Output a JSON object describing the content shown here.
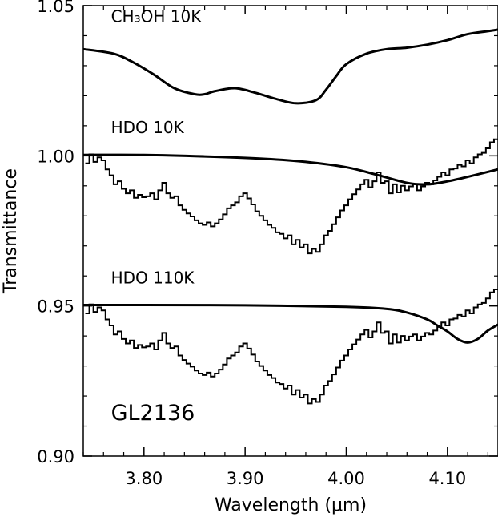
{
  "chart_data": {
    "type": "line",
    "xlabel": "Wavelength (μm)",
    "ylabel": "Transmittance",
    "xlim": [
      3.74,
      4.15
    ],
    "ylim": [
      0.9,
      1.05
    ],
    "x_ticks": [
      3.8,
      3.9,
      4.0,
      4.1
    ],
    "x_tick_labels": [
      "3.80",
      "3.90",
      "4.00",
      "4.10"
    ],
    "y_ticks": [
      0.9,
      0.95,
      1.0,
      1.05
    ],
    "y_tick_labels": [
      "0.90",
      "0.95",
      "1.00",
      "1.05"
    ],
    "grid": false,
    "annotations": [
      {
        "text": "CH₃OH 10K",
        "x": 3.765,
        "y": 1.0445
      },
      {
        "text": "HDO 10K",
        "x": 3.765,
        "y": 1.0075
      },
      {
        "text": "HDO 110K",
        "x": 3.765,
        "y": 0.9575
      },
      {
        "text": "GL2136",
        "x": 3.765,
        "y": 0.912
      }
    ],
    "series": [
      {
        "style": "smooth",
        "x": [
          3.74,
          3.77,
          3.79,
          3.81,
          3.83,
          3.85,
          3.86,
          3.87,
          3.89,
          3.91,
          3.93,
          3.95,
          3.97,
          3.98,
          3.99,
          4.0,
          4.02,
          4.04,
          4.06,
          4.08,
          4.1,
          4.12,
          4.14,
          4.15
        ],
        "y": [
          1.0355,
          1.034,
          1.031,
          1.027,
          1.0225,
          1.0205,
          1.0205,
          1.0215,
          1.0225,
          1.021,
          1.019,
          1.0175,
          1.0185,
          1.022,
          1.0265,
          1.0305,
          1.034,
          1.0355,
          1.036,
          1.037,
          1.0385,
          1.0405,
          1.0415,
          1.042
        ]
      },
      {
        "style": "smooth",
        "x": [
          3.74,
          3.8,
          3.86,
          3.92,
          3.96,
          4.0,
          4.03,
          4.06,
          4.08,
          4.1,
          4.12,
          4.15
        ],
        "y": [
          1.0003,
          1.0003,
          0.9998,
          0.999,
          0.998,
          0.9962,
          0.9937,
          0.991,
          0.9905,
          0.9915,
          0.993,
          0.9955
        ]
      },
      {
        "style": "smooth",
        "x": [
          3.74,
          3.8,
          3.9,
          4.0,
          4.04,
          4.06,
          4.08,
          4.09,
          4.1,
          4.11,
          4.12,
          4.13,
          4.14,
          4.15
        ],
        "y": [
          0.9503,
          0.9503,
          0.9502,
          0.9497,
          0.949,
          0.9478,
          0.9455,
          0.9435,
          0.9415,
          0.939,
          0.9378,
          0.939,
          0.9418,
          0.9438
        ]
      },
      {
        "style": "step",
        "x": [
          3.744,
          3.748,
          3.752,
          3.756,
          3.76,
          3.764,
          3.768,
          3.772,
          3.776,
          3.78,
          3.784,
          3.788,
          3.792,
          3.796,
          3.8,
          3.804,
          3.808,
          3.812,
          3.816,
          3.82,
          3.824,
          3.828,
          3.832,
          3.836,
          3.84,
          3.844,
          3.848,
          3.852,
          3.856,
          3.86,
          3.864,
          3.868,
          3.872,
          3.876,
          3.88,
          3.884,
          3.888,
          3.892,
          3.896,
          3.9,
          3.904,
          3.908,
          3.912,
          3.916,
          3.92,
          3.924,
          3.928,
          3.932,
          3.936,
          3.94,
          3.944,
          3.948,
          3.952,
          3.956,
          3.96,
          3.964,
          3.968,
          3.972,
          3.976,
          3.98,
          3.984,
          3.988,
          3.992,
          3.996,
          4.0,
          4.004,
          4.008,
          4.012,
          4.016,
          4.02,
          4.024,
          4.028,
          4.032,
          4.036,
          4.04,
          4.044,
          4.048,
          4.052,
          4.056,
          4.06,
          4.064,
          4.068,
          4.072,
          4.076,
          4.08,
          4.084,
          4.088,
          4.092,
          4.096,
          4.1,
          4.104,
          4.108,
          4.112,
          4.116,
          4.12,
          4.124,
          4.128,
          4.132,
          4.136,
          4.14,
          4.144,
          4.148
        ],
        "y": [
          0.9975,
          1.0005,
          0.998,
          0.9995,
          0.9985,
          0.9955,
          0.9935,
          0.9905,
          0.9915,
          0.989,
          0.9875,
          0.9885,
          0.986,
          0.987,
          0.9862,
          0.9865,
          0.9875,
          0.9855,
          0.9885,
          0.991,
          0.9875,
          0.986,
          0.9865,
          0.9835,
          0.982,
          0.9808,
          0.9798,
          0.9785,
          0.9775,
          0.977,
          0.9778,
          0.9765,
          0.9775,
          0.9788,
          0.9805,
          0.9825,
          0.9835,
          0.9845,
          0.9865,
          0.9875,
          0.9858,
          0.9838,
          0.9815,
          0.98,
          0.9785,
          0.977,
          0.976,
          0.9745,
          0.974,
          0.9725,
          0.9735,
          0.9705,
          0.972,
          0.9695,
          0.9705,
          0.9675,
          0.969,
          0.968,
          0.9705,
          0.9735,
          0.975,
          0.9772,
          0.9795,
          0.9818,
          0.9835,
          0.9855,
          0.9872,
          0.9888,
          0.9905,
          0.992,
          0.9895,
          0.9915,
          0.9945,
          0.991,
          0.9915,
          0.9875,
          0.9905,
          0.9878,
          0.99,
          0.9885,
          0.9898,
          0.9905,
          0.9885,
          0.9898,
          0.991,
          0.9905,
          0.9918,
          0.993,
          0.9945,
          0.9935,
          0.9955,
          0.9958,
          0.997,
          0.9965,
          0.9985,
          0.9975,
          0.9995,
          1.0005,
          1.001,
          1.0025,
          1.0045,
          1.0055
        ]
      },
      {
        "style": "step",
        "x": [
          3.744,
          3.748,
          3.752,
          3.756,
          3.76,
          3.764,
          3.768,
          3.772,
          3.776,
          3.78,
          3.784,
          3.788,
          3.792,
          3.796,
          3.8,
          3.804,
          3.808,
          3.812,
          3.816,
          3.82,
          3.824,
          3.828,
          3.832,
          3.836,
          3.84,
          3.844,
          3.848,
          3.852,
          3.856,
          3.86,
          3.864,
          3.868,
          3.872,
          3.876,
          3.88,
          3.884,
          3.888,
          3.892,
          3.896,
          3.9,
          3.904,
          3.908,
          3.912,
          3.916,
          3.92,
          3.924,
          3.928,
          3.932,
          3.936,
          3.94,
          3.944,
          3.948,
          3.952,
          3.956,
          3.96,
          3.964,
          3.968,
          3.972,
          3.976,
          3.98,
          3.984,
          3.988,
          3.992,
          3.996,
          4.0,
          4.004,
          4.008,
          4.012,
          4.016,
          4.02,
          4.024,
          4.028,
          4.032,
          4.036,
          4.04,
          4.044,
          4.048,
          4.052,
          4.056,
          4.06,
          4.064,
          4.068,
          4.072,
          4.076,
          4.08,
          4.084,
          4.088,
          4.092,
          4.096,
          4.1,
          4.104,
          4.108,
          4.112,
          4.116,
          4.12,
          4.124,
          4.128,
          4.132,
          4.136,
          4.14,
          4.144,
          4.148
        ],
        "y": [
          0.9475,
          0.9505,
          0.948,
          0.9495,
          0.9485,
          0.9455,
          0.9435,
          0.9405,
          0.9415,
          0.939,
          0.9375,
          0.9385,
          0.936,
          0.937,
          0.9362,
          0.9365,
          0.9375,
          0.9355,
          0.9385,
          0.941,
          0.9375,
          0.936,
          0.9365,
          0.9335,
          0.932,
          0.9308,
          0.9298,
          0.9285,
          0.9275,
          0.927,
          0.9278,
          0.9265,
          0.9275,
          0.9288,
          0.9305,
          0.9325,
          0.9335,
          0.9345,
          0.9365,
          0.9375,
          0.9358,
          0.9338,
          0.9315,
          0.93,
          0.9285,
          0.927,
          0.926,
          0.9245,
          0.924,
          0.9225,
          0.9235,
          0.9205,
          0.922,
          0.9195,
          0.9205,
          0.9175,
          0.919,
          0.918,
          0.9205,
          0.9235,
          0.925,
          0.9272,
          0.9295,
          0.9318,
          0.9335,
          0.9355,
          0.9372,
          0.9388,
          0.9405,
          0.942,
          0.9395,
          0.9415,
          0.9445,
          0.941,
          0.9415,
          0.9375,
          0.9405,
          0.9378,
          0.94,
          0.9385,
          0.9398,
          0.9405,
          0.9385,
          0.9398,
          0.941,
          0.9405,
          0.9418,
          0.943,
          0.9445,
          0.9435,
          0.9455,
          0.9458,
          0.947,
          0.9465,
          0.9485,
          0.9475,
          0.9495,
          0.9505,
          0.951,
          0.9525,
          0.9545,
          0.9555
        ]
      }
    ]
  }
}
